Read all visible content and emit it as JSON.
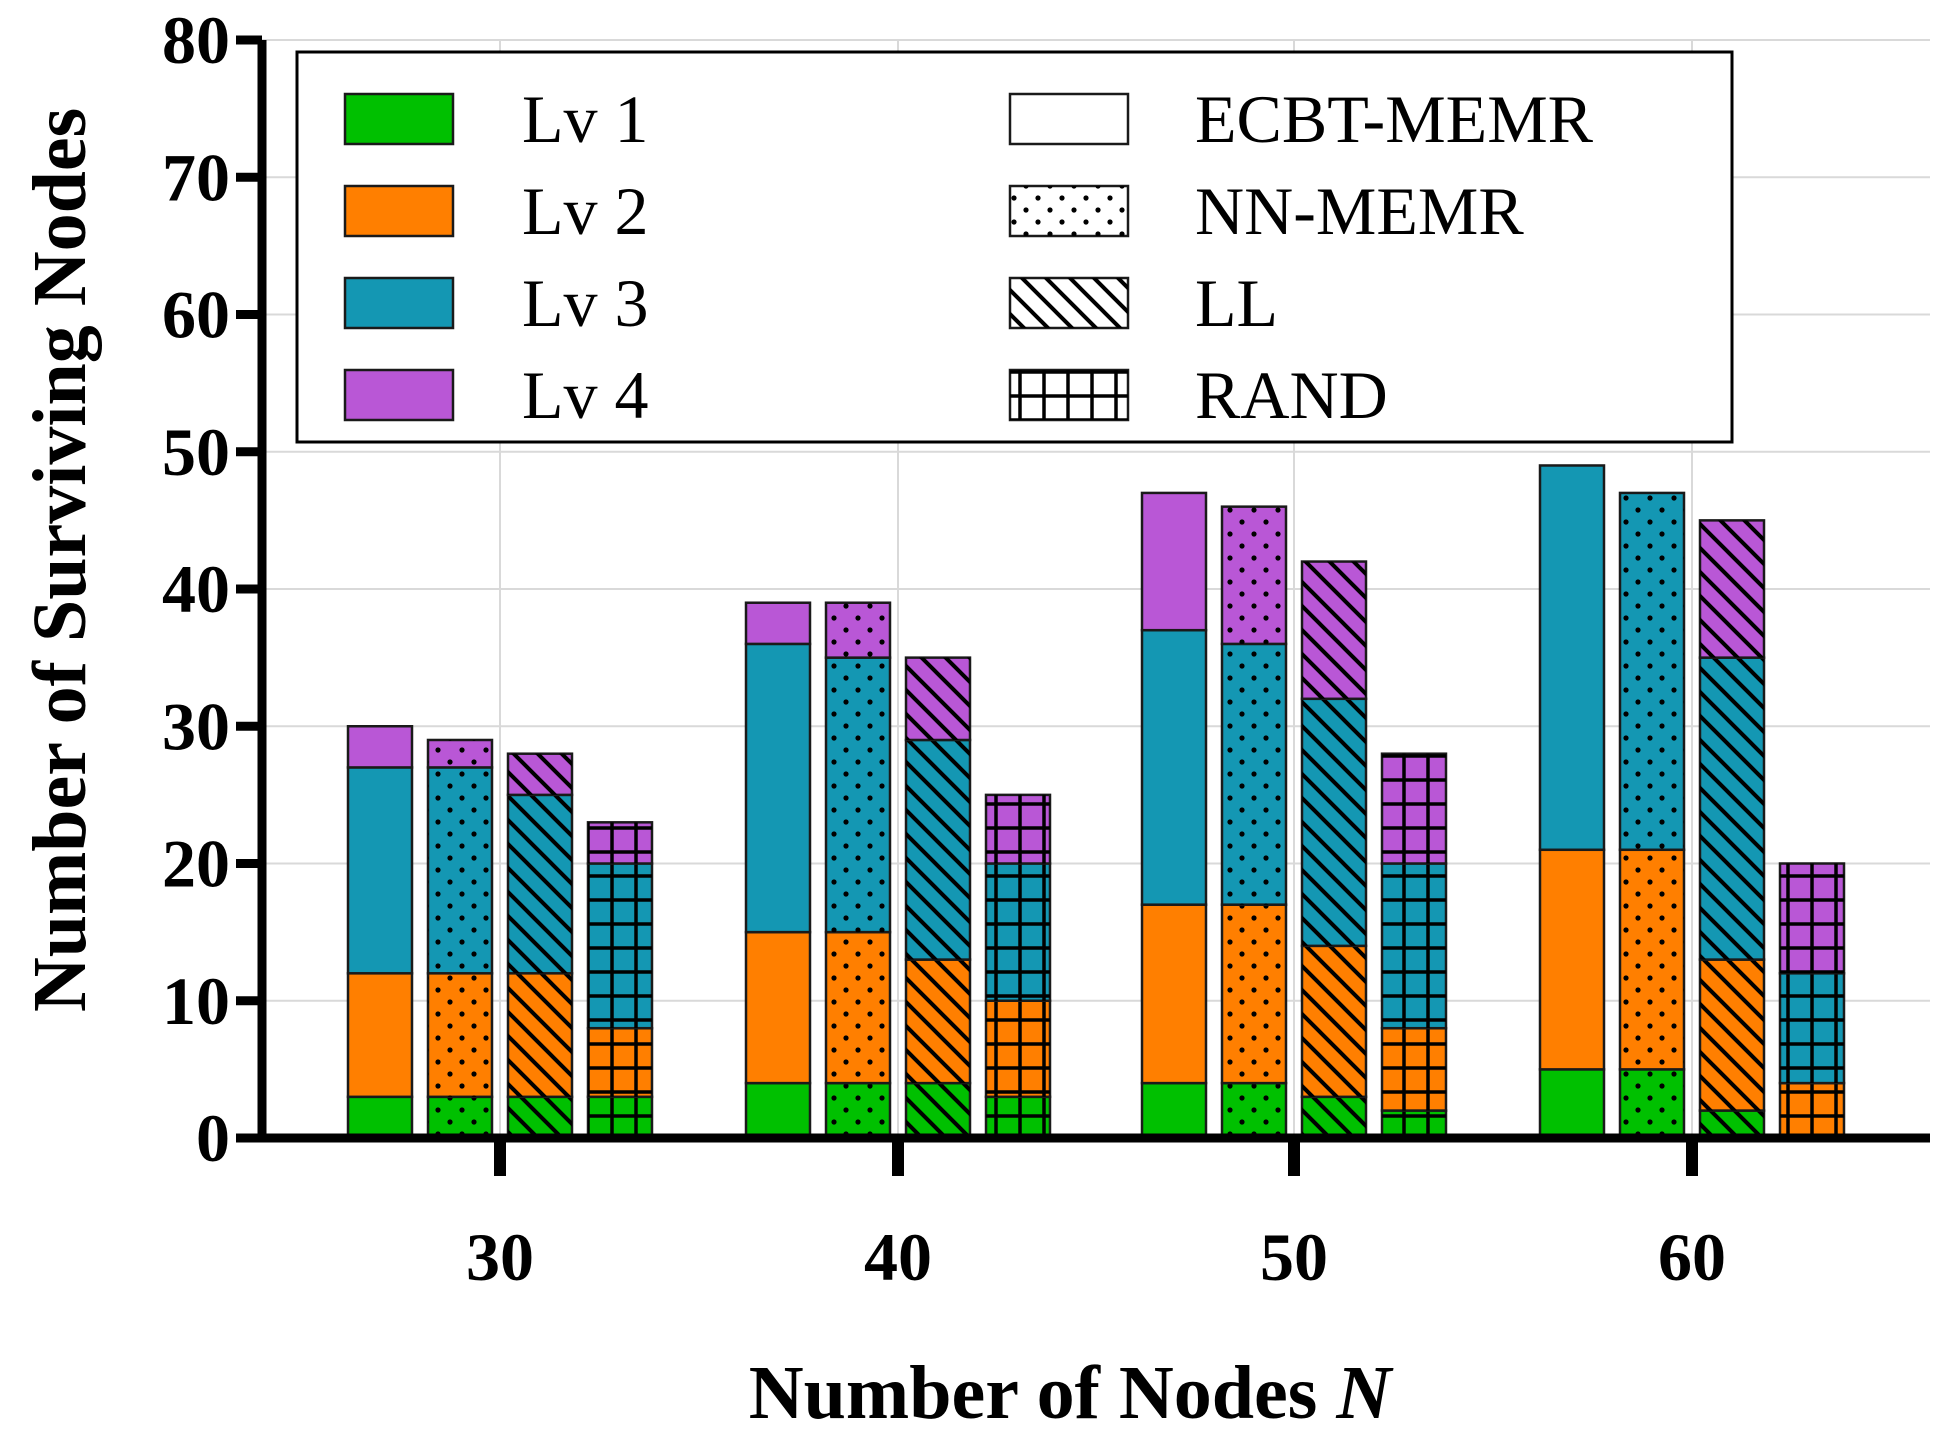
{
  "chart_data": {
    "type": "bar",
    "stacked": true,
    "title": "",
    "xlabel": "Number of Nodes",
    "xlabel_var": "N",
    "ylabel": "Number of Surviving Nodes",
    "ylim": [
      0,
      80
    ],
    "yticks": [
      "0",
      "10",
      "20",
      "30",
      "40",
      "50",
      "60",
      "70",
      "80"
    ],
    "grid": true,
    "legend_position": "top",
    "categories": [
      "30",
      "40",
      "50",
      "60"
    ],
    "levels": [
      {
        "name": "Lv 1",
        "color": "#00c000"
      },
      {
        "name": "Lv 2",
        "color": "#ff7f00"
      },
      {
        "name": "Lv 3",
        "color": "#1497b3"
      },
      {
        "name": "Lv 4",
        "color": "#b957d6"
      }
    ],
    "schemes": [
      {
        "name": "ECBT-MEMR",
        "pattern": "solid"
      },
      {
        "name": "NN-MEMR",
        "pattern": "dots"
      },
      {
        "name": "LL",
        "pattern": "diagonal"
      },
      {
        "name": "RAND",
        "pattern": "grid"
      }
    ],
    "stacks": [
      {
        "category": "30",
        "scheme": "ECBT-MEMR",
        "totals": [
          3,
          12,
          27,
          30
        ]
      },
      {
        "category": "30",
        "scheme": "NN-MEMR",
        "totals": [
          3,
          12,
          27,
          29
        ]
      },
      {
        "category": "30",
        "scheme": "LL",
        "totals": [
          3,
          12,
          25,
          28
        ]
      },
      {
        "category": "30",
        "scheme": "RAND",
        "totals": [
          3,
          8,
          20,
          23
        ]
      },
      {
        "category": "40",
        "scheme": "ECBT-MEMR",
        "totals": [
          4,
          15,
          36,
          39
        ]
      },
      {
        "category": "40",
        "scheme": "NN-MEMR",
        "totals": [
          4,
          15,
          35,
          39
        ]
      },
      {
        "category": "40",
        "scheme": "LL",
        "totals": [
          4,
          13,
          29,
          35
        ]
      },
      {
        "category": "40",
        "scheme": "RAND",
        "totals": [
          3,
          10,
          20,
          25
        ]
      },
      {
        "category": "50",
        "scheme": "ECBT-MEMR",
        "totals": [
          4,
          17,
          37,
          47
        ]
      },
      {
        "category": "50",
        "scheme": "NN-MEMR",
        "totals": [
          4,
          17,
          36,
          46
        ]
      },
      {
        "category": "50",
        "scheme": "LL",
        "totals": [
          3,
          14,
          32,
          42
        ]
      },
      {
        "category": "50",
        "scheme": "RAND",
        "totals": [
          2,
          8,
          20,
          28
        ]
      },
      {
        "category": "60",
        "scheme": "ECBT-MEMR",
        "totals": [
          5,
          21,
          49,
          49
        ]
      },
      {
        "category": "60",
        "scheme": "NN-MEMR",
        "totals": [
          5,
          21,
          47,
          47
        ]
      },
      {
        "category": "60",
        "scheme": "LL",
        "totals": [
          2,
          13,
          35,
          45
        ]
      },
      {
        "category": "60",
        "scheme": "RAND",
        "totals": [
          0,
          4,
          12,
          20
        ]
      }
    ]
  }
}
